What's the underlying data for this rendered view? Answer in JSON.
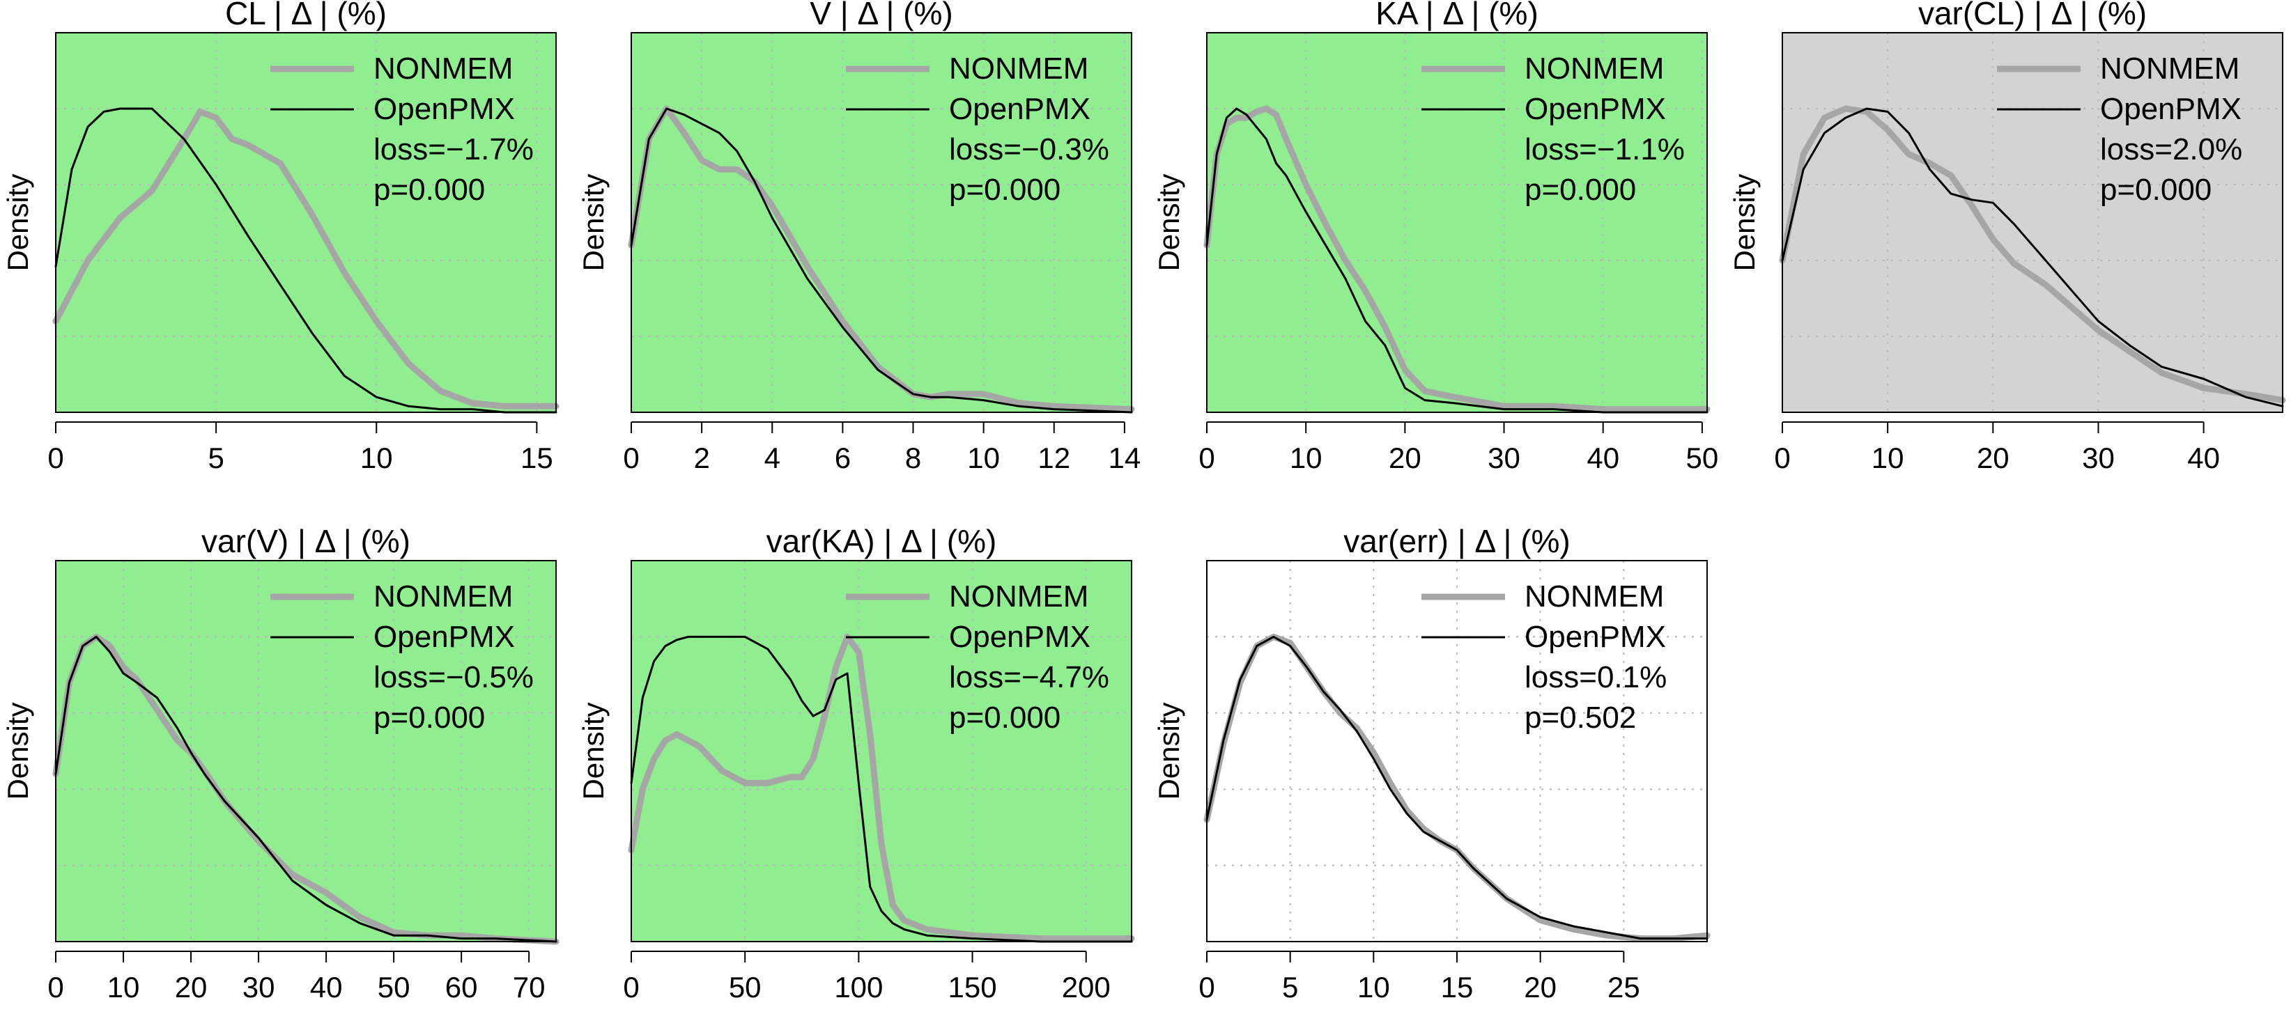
{
  "figure": {
    "ylabel": "Density",
    "legend_position": "top-right",
    "colors": {
      "significant_bg": "#90EE90",
      "neutral_bg": "#D3D3D3",
      "plain_bg": "#FFFFFF",
      "nonmem_line": "#A6A6A6",
      "openpmx_line": "#000000",
      "grid": "#B8B8B8"
    }
  },
  "chart_data": [
    {
      "type": "line",
      "title": "CL | Δ | (%)",
      "xlabel": "",
      "ylabel": "Density",
      "xlim": [
        0,
        15.6
      ],
      "xticks": [
        0,
        5,
        10,
        15
      ],
      "background": "#90EE90",
      "grid": true,
      "legend": [
        "NONMEM",
        "OpenPMX"
      ],
      "stats": [
        "loss=−1.7%",
        "p=0.000"
      ],
      "series": [
        {
          "name": "NONMEM",
          "x": [
            0,
            1,
            2,
            3,
            4,
            4.5,
            5,
            5.5,
            6,
            7,
            8,
            9,
            10,
            11,
            12,
            13,
            14,
            15.6
          ],
          "y": [
            0.3,
            0.5,
            0.64,
            0.73,
            0.9,
            0.99,
            0.97,
            0.9,
            0.88,
            0.82,
            0.65,
            0.46,
            0.3,
            0.16,
            0.07,
            0.03,
            0.02,
            0.02
          ]
        },
        {
          "name": "OpenPMX",
          "x": [
            0,
            0.5,
            1,
            1.5,
            2,
            2.5,
            3,
            4,
            5,
            6,
            7,
            8,
            9,
            10,
            11,
            12,
            13,
            14,
            15.6
          ],
          "y": [
            0.48,
            0.8,
            0.94,
            0.99,
            1.0,
            1.0,
            1.0,
            0.9,
            0.75,
            0.58,
            0.42,
            0.26,
            0.12,
            0.05,
            0.02,
            0.01,
            0.01,
            0.0,
            0.0
          ]
        }
      ]
    },
    {
      "type": "line",
      "title": "V | Δ | (%)",
      "xlabel": "",
      "ylabel": "Density",
      "xlim": [
        0,
        14.2
      ],
      "xticks": [
        0,
        2,
        4,
        6,
        8,
        10,
        12,
        14
      ],
      "background": "#90EE90",
      "grid": true,
      "legend": [
        "NONMEM",
        "OpenPMX"
      ],
      "stats": [
        "loss=−0.3%",
        "p=0.000"
      ],
      "series": [
        {
          "name": "NONMEM",
          "x": [
            0,
            0.5,
            1,
            1.5,
            2,
            2.5,
            3,
            3.5,
            4,
            5,
            6,
            7,
            8,
            8.5,
            9,
            10,
            11,
            12,
            14.2
          ],
          "y": [
            0.55,
            0.9,
            1.0,
            0.92,
            0.83,
            0.8,
            0.8,
            0.76,
            0.68,
            0.48,
            0.3,
            0.15,
            0.06,
            0.05,
            0.06,
            0.06,
            0.03,
            0.02,
            0.01
          ]
        },
        {
          "name": "OpenPMX",
          "x": [
            0,
            0.5,
            1,
            1.5,
            2,
            2.5,
            3,
            3.5,
            4,
            5,
            6,
            7,
            8,
            8.5,
            9,
            10,
            11,
            12,
            14.2
          ],
          "y": [
            0.55,
            0.9,
            1.0,
            0.98,
            0.95,
            0.92,
            0.86,
            0.76,
            0.64,
            0.44,
            0.28,
            0.14,
            0.06,
            0.05,
            0.05,
            0.04,
            0.02,
            0.01,
            0.0
          ]
        }
      ]
    },
    {
      "type": "line",
      "title": "KA | Δ | (%)",
      "xlabel": "",
      "ylabel": "Density",
      "xlim": [
        0,
        50.5
      ],
      "xticks": [
        0,
        10,
        20,
        30,
        40,
        50
      ],
      "background": "#90EE90",
      "grid": true,
      "legend": [
        "NONMEM",
        "OpenPMX"
      ],
      "stats": [
        "loss=−1.1%",
        "p=0.000"
      ],
      "series": [
        {
          "name": "NONMEM",
          "x": [
            0,
            1,
            2,
            3,
            4,
            5,
            6,
            7,
            8,
            10,
            12,
            14,
            16,
            18,
            20,
            22,
            25,
            30,
            35,
            40,
            50.5
          ],
          "y": [
            0.55,
            0.85,
            0.95,
            0.97,
            0.97,
            0.99,
            1.0,
            0.98,
            0.9,
            0.75,
            0.62,
            0.5,
            0.4,
            0.28,
            0.14,
            0.07,
            0.05,
            0.02,
            0.02,
            0.01,
            0.01
          ]
        },
        {
          "name": "OpenPMX",
          "x": [
            0,
            1,
            2,
            3,
            4,
            5,
            6,
            7,
            8,
            10,
            12,
            14,
            16,
            18,
            20,
            22,
            25,
            30,
            35,
            40,
            50.5
          ],
          "y": [
            0.55,
            0.85,
            0.97,
            1.0,
            0.98,
            0.94,
            0.9,
            0.82,
            0.78,
            0.66,
            0.55,
            0.44,
            0.3,
            0.22,
            0.08,
            0.04,
            0.03,
            0.01,
            0.01,
            0.0,
            0.0
          ]
        }
      ]
    },
    {
      "type": "line",
      "title": "var(CL) | Δ | (%)",
      "xlabel": "",
      "ylabel": "Density",
      "xlim": [
        0,
        47.5
      ],
      "xticks": [
        0,
        10,
        20,
        30,
        40
      ],
      "background": "#D3D3D3",
      "grid": true,
      "legend": [
        "NONMEM",
        "OpenPMX"
      ],
      "stats": [
        "loss=2.0%",
        "p=0.000"
      ],
      "series": [
        {
          "name": "NONMEM",
          "x": [
            0,
            2,
            4,
            6,
            8,
            10,
            12,
            14,
            16,
            18,
            20,
            22,
            25,
            28,
            30,
            33,
            36,
            40,
            44,
            47.5
          ],
          "y": [
            0.5,
            0.85,
            0.97,
            1.0,
            0.99,
            0.93,
            0.85,
            0.82,
            0.78,
            0.68,
            0.57,
            0.49,
            0.42,
            0.33,
            0.27,
            0.2,
            0.13,
            0.08,
            0.06,
            0.04
          ]
        },
        {
          "name": "OpenPMX",
          "x": [
            0,
            2,
            4,
            6,
            8,
            10,
            12,
            14,
            16,
            18,
            20,
            22,
            25,
            28,
            30,
            33,
            36,
            40,
            44,
            47.5
          ],
          "y": [
            0.5,
            0.8,
            0.92,
            0.97,
            1.0,
            0.99,
            0.92,
            0.8,
            0.72,
            0.7,
            0.69,
            0.62,
            0.5,
            0.38,
            0.3,
            0.22,
            0.15,
            0.11,
            0.05,
            0.02
          ]
        }
      ]
    },
    {
      "type": "line",
      "title": "var(V) | Δ | (%)",
      "xlabel": "",
      "ylabel": "Density",
      "xlim": [
        0,
        74
      ],
      "xticks": [
        0,
        10,
        20,
        30,
        40,
        50,
        60,
        70
      ],
      "background": "#90EE90",
      "grid": true,
      "legend": [
        "NONMEM",
        "OpenPMX"
      ],
      "stats": [
        "loss=−0.5%",
        "p=0.000"
      ],
      "series": [
        {
          "name": "NONMEM",
          "x": [
            0,
            2,
            4,
            6,
            8,
            10,
            12,
            15,
            18,
            20,
            22,
            25,
            30,
            35,
            40,
            45,
            50,
            55,
            60,
            65,
            74
          ],
          "y": [
            0.55,
            0.85,
            0.97,
            1.0,
            0.97,
            0.9,
            0.86,
            0.76,
            0.66,
            0.62,
            0.56,
            0.46,
            0.33,
            0.22,
            0.16,
            0.08,
            0.03,
            0.02,
            0.02,
            0.01,
            0.0
          ]
        },
        {
          "name": "OpenPMX",
          "x": [
            0,
            2,
            4,
            6,
            8,
            10,
            12,
            15,
            18,
            20,
            22,
            25,
            30,
            35,
            40,
            45,
            50,
            55,
            60,
            65,
            74
          ],
          "y": [
            0.55,
            0.85,
            0.97,
            1.0,
            0.95,
            0.88,
            0.85,
            0.8,
            0.7,
            0.62,
            0.55,
            0.46,
            0.34,
            0.2,
            0.12,
            0.06,
            0.02,
            0.02,
            0.01,
            0.01,
            0.0
          ]
        }
      ]
    },
    {
      "type": "line",
      "title": "var(KA) | Δ | (%)",
      "xlabel": "",
      "ylabel": "Density",
      "xlim": [
        0,
        220
      ],
      "xticks": [
        0,
        50,
        100,
        150,
        200
      ],
      "background": "#90EE90",
      "grid": true,
      "legend": [
        "NONMEM",
        "OpenPMX"
      ],
      "stats": [
        "loss=−4.7%",
        "p=0.000"
      ],
      "series": [
        {
          "name": "NONMEM",
          "x": [
            0,
            5,
            10,
            15,
            20,
            30,
            40,
            50,
            60,
            70,
            75,
            80,
            85,
            90,
            95,
            100,
            105,
            110,
            115,
            120,
            130,
            150,
            180,
            220
          ],
          "y": [
            0.3,
            0.5,
            0.6,
            0.66,
            0.68,
            0.64,
            0.56,
            0.52,
            0.52,
            0.54,
            0.54,
            0.6,
            0.74,
            0.9,
            1.0,
            0.95,
            0.68,
            0.32,
            0.12,
            0.07,
            0.04,
            0.02,
            0.01,
            0.01
          ]
        },
        {
          "name": "OpenPMX",
          "x": [
            0,
            5,
            10,
            15,
            20,
            25,
            30,
            40,
            50,
            60,
            70,
            75,
            80,
            85,
            90,
            95,
            100,
            105,
            110,
            115,
            120,
            130,
            150,
            180,
            220
          ],
          "y": [
            0.52,
            0.8,
            0.92,
            0.97,
            0.99,
            1.0,
            1.0,
            1.0,
            1.0,
            0.96,
            0.86,
            0.79,
            0.74,
            0.76,
            0.86,
            0.88,
            0.52,
            0.18,
            0.1,
            0.06,
            0.04,
            0.02,
            0.01,
            0.0,
            0.0
          ]
        }
      ]
    },
    {
      "type": "line",
      "title": "var(err) | Δ | (%)",
      "xlabel": "",
      "ylabel": "Density",
      "xlim": [
        0,
        30
      ],
      "xticks": [
        0,
        5,
        10,
        15,
        20,
        25
      ],
      "background": "#FFFFFF",
      "grid": true,
      "legend": [
        "NONMEM",
        "OpenPMX"
      ],
      "stats": [
        "loss=0.1%",
        "p=0.502"
      ],
      "series": [
        {
          "name": "NONMEM",
          "x": [
            0,
            1,
            2,
            3,
            4,
            5,
            6,
            7,
            8,
            9,
            10,
            11,
            12,
            13,
            14,
            15,
            16,
            18,
            20,
            22,
            24,
            26,
            28,
            30
          ],
          "y": [
            0.4,
            0.65,
            0.85,
            0.97,
            1.0,
            0.98,
            0.9,
            0.82,
            0.75,
            0.7,
            0.62,
            0.52,
            0.43,
            0.37,
            0.33,
            0.3,
            0.24,
            0.14,
            0.07,
            0.04,
            0.02,
            0.01,
            0.01,
            0.02
          ]
        },
        {
          "name": "OpenPMX",
          "x": [
            0,
            1,
            2,
            3,
            4,
            5,
            6,
            7,
            8,
            9,
            10,
            11,
            12,
            13,
            14,
            15,
            16,
            18,
            20,
            22,
            24,
            26,
            28,
            30
          ],
          "y": [
            0.4,
            0.66,
            0.86,
            0.97,
            1.0,
            0.97,
            0.9,
            0.82,
            0.76,
            0.69,
            0.6,
            0.5,
            0.42,
            0.36,
            0.33,
            0.3,
            0.24,
            0.14,
            0.08,
            0.05,
            0.03,
            0.01,
            0.01,
            0.01
          ]
        }
      ]
    }
  ]
}
